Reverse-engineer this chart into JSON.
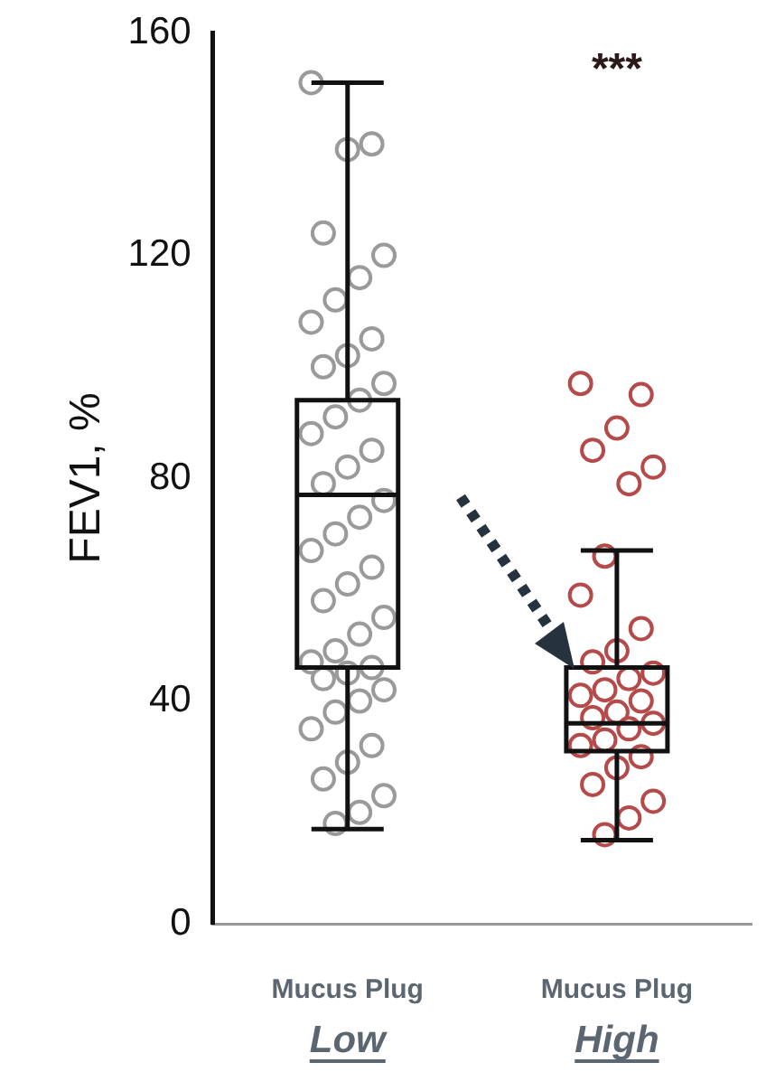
{
  "chart_data": {
    "type": "box",
    "ylabel": "FEV1, %",
    "categories": [
      "Mucus Plug\nLow",
      "Mucus Plug\nHigh"
    ],
    "ylim": [
      0,
      160
    ],
    "yticks": [
      0,
      40,
      80,
      120,
      160
    ],
    "grid": false,
    "legend": false,
    "boxes": [
      {
        "low": 17,
        "q1": 46,
        "median": 77,
        "q3": 94,
        "high": 151
      },
      {
        "low": 15,
        "q1": 31,
        "median": 36,
        "q3": 46,
        "high": 67
      }
    ],
    "series": [
      {
        "type": "scatter",
        "color": "#9a9a9a",
        "marker": "circle",
        "x": [
          "Mucus Plug\nLow",
          "Mucus Plug\nLow",
          "Mucus Plug\nLow",
          "Mucus Plug\nLow",
          "Mucus Plug\nLow",
          "Mucus Plug\nLow",
          "Mucus Plug\nLow",
          "Mucus Plug\nLow",
          "Mucus Plug\nLow",
          "Mucus Plug\nLow",
          "Mucus Plug\nLow",
          "Mucus Plug\nLow",
          "Mucus Plug\nLow",
          "Mucus Plug\nLow",
          "Mucus Plug\nLow",
          "Mucus Plug\nLow",
          "Mucus Plug\nLow",
          "Mucus Plug\nLow",
          "Mucus Plug\nLow",
          "Mucus Plug\nLow",
          "Mucus Plug\nLow",
          "Mucus Plug\nLow",
          "Mucus Plug\nLow",
          "Mucus Plug\nLow",
          "Mucus Plug\nLow",
          "Mucus Plug\nLow",
          "Mucus Plug\nLow",
          "Mucus Plug\nLow",
          "Mucus Plug\nLow",
          "Mucus Plug\nLow",
          "Mucus Plug\nLow",
          "Mucus Plug\nLow",
          "Mucus Plug\nLow",
          "Mucus Plug\nLow",
          "Mucus Plug\nLow",
          "Mucus Plug\nLow",
          "Mucus Plug\nLow",
          "Mucus Plug\nLow",
          "Mucus Plug\nLow",
          "Mucus Plug\nLow",
          "Mucus Plug\nLow",
          "Mucus Plug\nLow"
        ],
        "values": [
          151,
          140,
          139,
          124,
          120,
          116,
          112,
          108,
          105,
          102,
          100,
          97,
          94,
          91,
          88,
          85,
          82,
          79,
          76,
          73,
          70,
          67,
          64,
          61,
          58,
          55,
          52,
          49,
          47,
          46,
          45,
          44,
          42,
          40,
          38,
          35,
          32,
          29,
          26,
          23,
          20,
          18
        ]
      },
      {
        "type": "scatter",
        "color": "#b54a4a",
        "marker": "circle",
        "x": [
          "Mucus Plug\nHigh",
          "Mucus Plug\nHigh",
          "Mucus Plug\nHigh",
          "Mucus Plug\nHigh",
          "Mucus Plug\nHigh",
          "Mucus Plug\nHigh",
          "Mucus Plug\nHigh",
          "Mucus Plug\nHigh",
          "Mucus Plug\nHigh",
          "Mucus Plug\nHigh",
          "Mucus Plug\nHigh",
          "Mucus Plug\nHigh",
          "Mucus Plug\nHigh",
          "Mucus Plug\nHigh",
          "Mucus Plug\nHigh",
          "Mucus Plug\nHigh",
          "Mucus Plug\nHigh",
          "Mucus Plug\nHigh",
          "Mucus Plug\nHigh",
          "Mucus Plug\nHigh",
          "Mucus Plug\nHigh",
          "Mucus Plug\nHigh",
          "Mucus Plug\nHigh",
          "Mucus Plug\nHigh",
          "Mucus Plug\nHigh",
          "Mucus Plug\nHigh",
          "Mucus Plug\nHigh",
          "Mucus Plug\nHigh"
        ],
        "values": [
          97,
          95,
          89,
          85,
          82,
          79,
          66,
          59,
          53,
          49,
          47,
          45,
          44,
          42,
          41,
          40,
          38,
          37,
          36,
          35,
          33,
          32,
          30,
          28,
          25,
          22,
          19,
          16
        ]
      }
    ],
    "annotations": [
      "***"
    ]
  }
}
